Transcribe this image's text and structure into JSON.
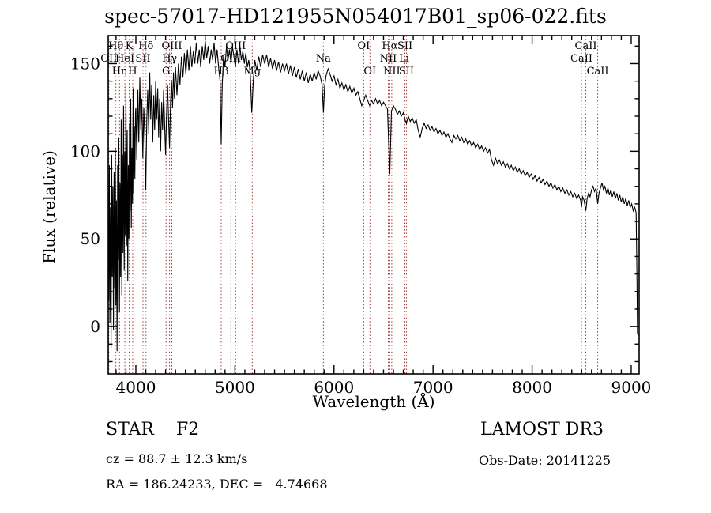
{
  "title": "spec-57017-HD121955N054017B01_sp06-022.fits",
  "axes": {
    "x_label": "Wavelength (Å)",
    "y_label": "Flux (relative)"
  },
  "footer": {
    "class_label": "STAR    F2",
    "cz": "cz = 88.7 ± 12.3 km/s",
    "radec": "RA = 186.24233, DEC =   4.74668",
    "survey": "LAMOST DR3",
    "obs_date": "Obs-Date: 20141225"
  },
  "colors": {
    "spectrum": "#000000",
    "line_marker": "#a03c3c",
    "axis": "#000000",
    "background": "#ffffff"
  },
  "chart_data": {
    "type": "line",
    "title": "spec-57017-HD121955N054017B01_sp06-022.fits",
    "xlabel": "Wavelength (Å)",
    "ylabel": "Flux (relative)",
    "xlim": [
      3721,
      9080
    ],
    "ylim": [
      -27,
      166
    ],
    "x_ticks": [
      4000,
      5000,
      6000,
      7000,
      8000,
      9000
    ],
    "y_ticks": [
      0,
      50,
      100,
      150
    ],
    "x_minor_step": 100,
    "y_minor_step": 10,
    "grid": false,
    "legend": "none",
    "line_markers": [
      {
        "label": "Hθ",
        "wavelength": 3798,
        "row": 1
      },
      {
        "label": "K",
        "wavelength": 3933,
        "row": 1
      },
      {
        "label": "Hδ",
        "wavelength": 4102,
        "row": 1
      },
      {
        "label": "OIII",
        "wavelength": 4363,
        "row": 1
      },
      {
        "label": "OIII",
        "wavelength": 5007,
        "row": 1
      },
      {
        "label": "OI",
        "wavelength": 6300,
        "row": 1
      },
      {
        "label": "Hα",
        "wavelength": 6563,
        "row": 1
      },
      {
        "label": "SII",
        "wavelength": 6716,
        "row": 1
      },
      {
        "label": "CaII",
        "wavelength": 8542,
        "row": 1
      },
      {
        "label": "OII",
        "wavelength": 3727,
        "row": 2
      },
      {
        "label": "HeI",
        "wavelength": 3889,
        "row": 2
      },
      {
        "label": "SII",
        "wavelength": 4072,
        "row": 2
      },
      {
        "label": "Hγ",
        "wavelength": 4340,
        "row": 2
      },
      {
        "label": "OIII",
        "wavelength": 4959,
        "row": 2
      },
      {
        "label": "Na",
        "wavelength": 5893,
        "row": 2
      },
      {
        "label": "NII",
        "wavelength": 6548,
        "row": 2
      },
      {
        "label": "Li",
        "wavelength": 6708,
        "row": 2
      },
      {
        "label": "CaII",
        "wavelength": 8498,
        "row": 2
      },
      {
        "label": "Hη",
        "wavelength": 3835,
        "row": 3
      },
      {
        "label": "H",
        "wavelength": 3968,
        "row": 3
      },
      {
        "label": "G",
        "wavelength": 4305,
        "row": 3
      },
      {
        "label": "Hβ",
        "wavelength": 4861,
        "row": 3
      },
      {
        "label": "Mg",
        "wavelength": 5175,
        "row": 3
      },
      {
        "label": "OI",
        "wavelength": 6363,
        "row": 3
      },
      {
        "label": "NII",
        "wavelength": 6583,
        "row": 3
      },
      {
        "label": "SII",
        "wavelength": 6731,
        "row": 3
      },
      {
        "label": "CaII",
        "wavelength": 8662,
        "row": 3
      }
    ],
    "spectrum": [
      [
        3702,
        20
      ],
      [
        3708,
        78
      ],
      [
        3714,
        -8
      ],
      [
        3720,
        55
      ],
      [
        3726,
        15
      ],
      [
        3732,
        92
      ],
      [
        3738,
        2
      ],
      [
        3744,
        68
      ],
      [
        3750,
        -12
      ],
      [
        3756,
        98
      ],
      [
        3762,
        28
      ],
      [
        3768,
        80
      ],
      [
        3774,
        -2
      ],
      [
        3780,
        88
      ],
      [
        3786,
        22
      ],
      [
        3792,
        102
      ],
      [
        3798,
        12
      ],
      [
        3804,
        72
      ],
      [
        3810,
        -14
      ],
      [
        3816,
        92
      ],
      [
        3822,
        38
      ],
      [
        3828,
        108
      ],
      [
        3834,
        8
      ],
      [
        3840,
        82
      ],
      [
        3846,
        28
      ],
      [
        3852,
        118
      ],
      [
        3858,
        18
      ],
      [
        3864,
        98
      ],
      [
        3870,
        42
      ],
      [
        3876,
        126
      ],
      [
        3882,
        32
      ],
      [
        3888,
        100
      ],
      [
        3894,
        52
      ],
      [
        3900,
        138
      ],
      [
        3906,
        46
      ],
      [
        3912,
        112
      ],
      [
        3918,
        26
      ],
      [
        3924,
        92
      ],
      [
        3930,
        50
      ],
      [
        3936,
        116
      ],
      [
        3942,
        66
      ],
      [
        3948,
        130
      ],
      [
        3954,
        56
      ],
      [
        3960,
        102
      ],
      [
        3966,
        70
      ],
      [
        3972,
        136
      ],
      [
        3978,
        76
      ],
      [
        3984,
        114
      ],
      [
        3990,
        84
      ],
      [
        3996,
        122
      ],
      [
        4000,
        125
      ],
      [
        4010,
        95
      ],
      [
        4020,
        135
      ],
      [
        4030,
        105
      ],
      [
        4040,
        142
      ],
      [
        4050,
        112
      ],
      [
        4060,
        130
      ],
      [
        4070,
        96
      ],
      [
        4080,
        125
      ],
      [
        4090,
        108
      ],
      [
        4100,
        78
      ],
      [
        4110,
        118
      ],
      [
        4120,
        135
      ],
      [
        4130,
        110
      ],
      [
        4140,
        145
      ],
      [
        4150,
        118
      ],
      [
        4160,
        138
      ],
      [
        4170,
        105
      ],
      [
        4180,
        132
      ],
      [
        4190,
        112
      ],
      [
        4200,
        140
      ],
      [
        4210,
        118
      ],
      [
        4220,
        136
      ],
      [
        4230,
        108
      ],
      [
        4240,
        130
      ],
      [
        4250,
        100
      ],
      [
        4260,
        128
      ],
      [
        4270,
        112
      ],
      [
        4280,
        135
      ],
      [
        4290,
        115
      ],
      [
        4300,
        98
      ],
      [
        4310,
        122
      ],
      [
        4320,
        138
      ],
      [
        4330,
        118
      ],
      [
        4340,
        102
      ],
      [
        4350,
        128
      ],
      [
        4360,
        140
      ],
      [
        4370,
        125
      ],
      [
        4380,
        145
      ],
      [
        4390,
        130
      ],
      [
        4400,
        148
      ],
      [
        4415,
        132
      ],
      [
        4430,
        150
      ],
      [
        4445,
        138
      ],
      [
        4460,
        154
      ],
      [
        4475,
        142
      ],
      [
        4490,
        156
      ],
      [
        4505,
        144
      ],
      [
        4520,
        158
      ],
      [
        4535,
        146
      ],
      [
        4550,
        160
      ],
      [
        4565,
        148
      ],
      [
        4580,
        157
      ],
      [
        4595,
        150
      ],
      [
        4610,
        162
      ],
      [
        4625,
        150
      ],
      [
        4640,
        158
      ],
      [
        4655,
        148
      ],
      [
        4670,
        160
      ],
      [
        4685,
        152
      ],
      [
        4700,
        163
      ],
      [
        4715,
        153
      ],
      [
        4730,
        160
      ],
      [
        4745,
        150
      ],
      [
        4760,
        158
      ],
      [
        4775,
        152
      ],
      [
        4790,
        162
      ],
      [
        4805,
        150
      ],
      [
        4820,
        158
      ],
      [
        4835,
        148
      ],
      [
        4850,
        140
      ],
      [
        4861,
        104
      ],
      [
        4872,
        138
      ],
      [
        4885,
        155
      ],
      [
        4900,
        148
      ],
      [
        4915,
        160
      ],
      [
        4930,
        152
      ],
      [
        4945,
        158
      ],
      [
        4960,
        150
      ],
      [
        4975,
        160
      ],
      [
        4990,
        154
      ],
      [
        5005,
        148
      ],
      [
        5020,
        158
      ],
      [
        5035,
        150
      ],
      [
        5050,
        160
      ],
      [
        5065,
        152
      ],
      [
        5080,
        157
      ],
      [
        5095,
        150
      ],
      [
        5110,
        156
      ],
      [
        5125,
        148
      ],
      [
        5140,
        152
      ],
      [
        5155,
        144
      ],
      [
        5170,
        122
      ],
      [
        5185,
        140
      ],
      [
        5200,
        152
      ],
      [
        5220,
        146
      ],
      [
        5240,
        154
      ],
      [
        5260,
        148
      ],
      [
        5280,
        155
      ],
      [
        5300,
        150
      ],
      [
        5320,
        155
      ],
      [
        5340,
        148
      ],
      [
        5360,
        153
      ],
      [
        5380,
        147
      ],
      [
        5400,
        152
      ],
      [
        5420,
        146
      ],
      [
        5440,
        151
      ],
      [
        5460,
        145
      ],
      [
        5480,
        150
      ],
      [
        5500,
        146
      ],
      [
        5520,
        150
      ],
      [
        5540,
        144
      ],
      [
        5560,
        149
      ],
      [
        5580,
        143
      ],
      [
        5600,
        148
      ],
      [
        5620,
        142
      ],
      [
        5640,
        147
      ],
      [
        5660,
        141
      ],
      [
        5680,
        146
      ],
      [
        5700,
        140
      ],
      [
        5720,
        145
      ],
      [
        5740,
        139
      ],
      [
        5760,
        144
      ],
      [
        5780,
        140
      ],
      [
        5800,
        145
      ],
      [
        5820,
        141
      ],
      [
        5840,
        146
      ],
      [
        5860,
        143
      ],
      [
        5880,
        138
      ],
      [
        5893,
        122
      ],
      [
        5905,
        137
      ],
      [
        5920,
        143
      ],
      [
        5940,
        147
      ],
      [
        5960,
        144
      ],
      [
        5980,
        140
      ],
      [
        6000,
        143
      ],
      [
        6020,
        138
      ],
      [
        6040,
        141
      ],
      [
        6060,
        136
      ],
      [
        6080,
        139
      ],
      [
        6100,
        135
      ],
      [
        6120,
        138
      ],
      [
        6140,
        134
      ],
      [
        6160,
        137
      ],
      [
        6180,
        133
      ],
      [
        6200,
        136
      ],
      [
        6220,
        132
      ],
      [
        6240,
        134
      ],
      [
        6260,
        130
      ],
      [
        6280,
        126
      ],
      [
        6300,
        129
      ],
      [
        6320,
        132
      ],
      [
        6340,
        129
      ],
      [
        6360,
        126
      ],
      [
        6380,
        129
      ],
      [
        6400,
        127
      ],
      [
        6420,
        130
      ],
      [
        6440,
        127
      ],
      [
        6460,
        129
      ],
      [
        6480,
        126
      ],
      [
        6500,
        128
      ],
      [
        6520,
        126
      ],
      [
        6540,
        124
      ],
      [
        6563,
        87
      ],
      [
        6580,
        123
      ],
      [
        6600,
        126
      ],
      [
        6620,
        124
      ],
      [
        6640,
        121
      ],
      [
        6660,
        123
      ],
      [
        6680,
        120
      ],
      [
        6700,
        122
      ],
      [
        6717,
        118
      ],
      [
        6731,
        116
      ],
      [
        6750,
        120
      ],
      [
        6770,
        117
      ],
      [
        6790,
        119
      ],
      [
        6810,
        116
      ],
      [
        6830,
        118
      ],
      [
        6850,
        112
      ],
      [
        6870,
        108
      ],
      [
        6890,
        113
      ],
      [
        6910,
        116
      ],
      [
        6930,
        113
      ],
      [
        6950,
        115
      ],
      [
        6970,
        112
      ],
      [
        6990,
        114
      ],
      [
        7010,
        111
      ],
      [
        7030,
        113
      ],
      [
        7050,
        110
      ],
      [
        7070,
        112
      ],
      [
        7090,
        109
      ],
      [
        7110,
        111
      ],
      [
        7130,
        108
      ],
      [
        7150,
        110
      ],
      [
        7170,
        107
      ],
      [
        7190,
        105
      ],
      [
        7210,
        109
      ],
      [
        7230,
        107
      ],
      [
        7250,
        109
      ],
      [
        7270,
        106
      ],
      [
        7290,
        108
      ],
      [
        7310,
        105
      ],
      [
        7330,
        107
      ],
      [
        7350,
        104
      ],
      [
        7370,
        106
      ],
      [
        7390,
        103
      ],
      [
        7410,
        105
      ],
      [
        7430,
        102
      ],
      [
        7450,
        104
      ],
      [
        7470,
        101
      ],
      [
        7490,
        103
      ],
      [
        7510,
        100
      ],
      [
        7530,
        102
      ],
      [
        7550,
        99
      ],
      [
        7570,
        101
      ],
      [
        7590,
        95
      ],
      [
        7610,
        92
      ],
      [
        7630,
        96
      ],
      [
        7650,
        93
      ],
      [
        7670,
        95
      ],
      [
        7690,
        92
      ],
      [
        7710,
        94
      ],
      [
        7730,
        91
      ],
      [
        7750,
        93
      ],
      [
        7770,
        90
      ],
      [
        7790,
        92
      ],
      [
        7810,
        89
      ],
      [
        7830,
        91
      ],
      [
        7850,
        88
      ],
      [
        7870,
        90
      ],
      [
        7890,
        87
      ],
      [
        7910,
        89
      ],
      [
        7930,
        86
      ],
      [
        7950,
        88
      ],
      [
        7970,
        85
      ],
      [
        7990,
        87
      ],
      [
        8010,
        84
      ],
      [
        8030,
        86
      ],
      [
        8050,
        83
      ],
      [
        8070,
        85
      ],
      [
        8090,
        82
      ],
      [
        8110,
        84
      ],
      [
        8130,
        81
      ],
      [
        8150,
        83
      ],
      [
        8170,
        80
      ],
      [
        8190,
        82
      ],
      [
        8210,
        79
      ],
      [
        8230,
        81
      ],
      [
        8250,
        78
      ],
      [
        8270,
        80
      ],
      [
        8290,
        77
      ],
      [
        8310,
        79
      ],
      [
        8330,
        76
      ],
      [
        8350,
        78
      ],
      [
        8370,
        75
      ],
      [
        8390,
        77
      ],
      [
        8410,
        74
      ],
      [
        8430,
        76
      ],
      [
        8450,
        73
      ],
      [
        8470,
        75
      ],
      [
        8490,
        72
      ],
      [
        8498,
        68
      ],
      [
        8510,
        74
      ],
      [
        8525,
        72
      ],
      [
        8542,
        66
      ],
      [
        8555,
        73
      ],
      [
        8570,
        76
      ],
      [
        8585,
        74
      ],
      [
        8600,
        78
      ],
      [
        8615,
        80
      ],
      [
        8630,
        77
      ],
      [
        8645,
        79
      ],
      [
        8662,
        70
      ],
      [
        8675,
        76
      ],
      [
        8690,
        79
      ],
      [
        8705,
        82
      ],
      [
        8720,
        78
      ],
      [
        8735,
        80
      ],
      [
        8750,
        76
      ],
      [
        8765,
        79
      ],
      [
        8780,
        75
      ],
      [
        8795,
        78
      ],
      [
        8810,
        74
      ],
      [
        8825,
        77
      ],
      [
        8840,
        73
      ],
      [
        8855,
        76
      ],
      [
        8870,
        72
      ],
      [
        8885,
        75
      ],
      [
        8900,
        71
      ],
      [
        8915,
        74
      ],
      [
        8930,
        70
      ],
      [
        8945,
        73
      ],
      [
        8960,
        69
      ],
      [
        8975,
        72
      ],
      [
        8990,
        68
      ],
      [
        9005,
        70
      ],
      [
        9020,
        66
      ],
      [
        9035,
        68
      ],
      [
        9050,
        65
      ],
      [
        9058,
        30
      ],
      [
        9063,
        -4
      ],
      [
        9076,
        -5
      ]
    ]
  }
}
